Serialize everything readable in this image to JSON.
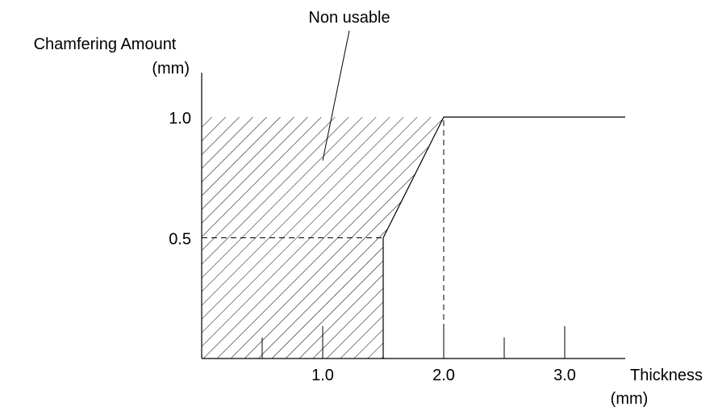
{
  "chart_data": {
    "type": "area",
    "title": "",
    "xlabel": "Thickness",
    "xunit": "(mm)",
    "ylabel": "Chamfering Amount",
    "yunit": "(mm)",
    "xlim": [
      0,
      3.5
    ],
    "ylim": [
      0,
      1.0
    ],
    "x_ticks": [
      {
        "value": 0.5,
        "label": ""
      },
      {
        "value": 1.0,
        "label": "1.0"
      },
      {
        "value": 2.0,
        "label": "2.0"
      },
      {
        "value": 2.5,
        "label": ""
      },
      {
        "value": 3.0,
        "label": "3.0"
      }
    ],
    "y_ticks": [
      {
        "value": 0.5,
        "label": "0.5"
      },
      {
        "value": 1.0,
        "label": "1.0"
      }
    ],
    "region": {
      "name": "Non usable",
      "boundary": [
        {
          "x": 0,
          "y": 0
        },
        {
          "x": 0,
          "y": 1.0
        },
        {
          "x": 2.0,
          "y": 1.0
        },
        {
          "x": 1.5,
          "y": 0.5
        },
        {
          "x": 1.5,
          "y": 0
        }
      ]
    },
    "limit_line": [
      {
        "x": 1.5,
        "y": 0.5
      },
      {
        "x": 2.0,
        "y": 1.0
      },
      {
        "x": 3.5,
        "y": 1.0
      }
    ],
    "guides": [
      {
        "from": [
          0,
          0.5
        ],
        "to": [
          1.5,
          0.5
        ]
      },
      {
        "from": [
          2.0,
          0
        ],
        "to": [
          2.0,
          1.0
        ]
      }
    ],
    "annotation": {
      "text": "Non usable",
      "point": {
        "x": 1.0,
        "y": 0.82
      }
    },
    "grid": false,
    "color": "#000000"
  }
}
